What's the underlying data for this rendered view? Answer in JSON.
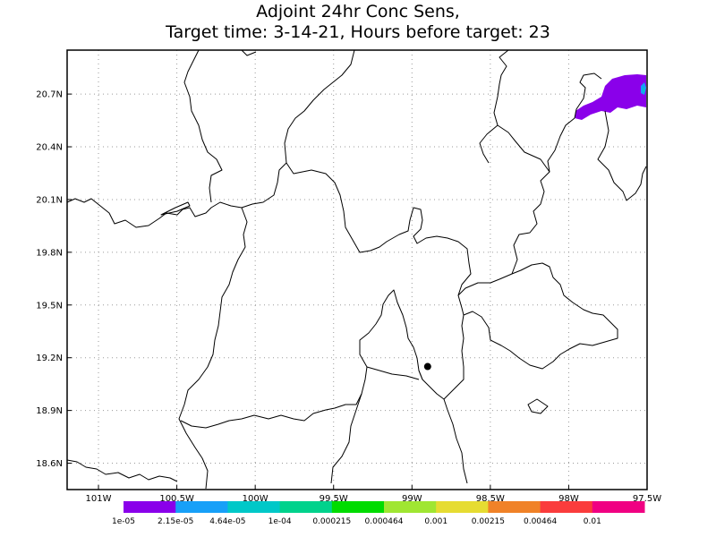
{
  "title": {
    "line1": "Adjoint 24hr Conc Sens,",
    "line2": "Target time: 3-14-21, Hours before target: 23"
  },
  "map": {
    "lon_range": [
      -101.2,
      -97.5
    ],
    "lat_range": [
      18.45,
      20.95
    ],
    "lat_ticks": [
      {
        "value": 20.7,
        "label": "20.7N"
      },
      {
        "value": 20.4,
        "label": "20.4N"
      },
      {
        "value": 20.1,
        "label": "20.1N"
      },
      {
        "value": 19.8,
        "label": "19.8N"
      },
      {
        "value": 19.5,
        "label": "19.5N"
      },
      {
        "value": 19.2,
        "label": "19.2N"
      },
      {
        "value": 18.9,
        "label": "18.9N"
      },
      {
        "value": 18.6,
        "label": "18.6N"
      }
    ],
    "lon_ticks": [
      {
        "value": -101.0,
        "label": "101W"
      },
      {
        "value": -100.5,
        "label": "100.5W"
      },
      {
        "value": -100.0,
        "label": "100W"
      },
      {
        "value": -99.5,
        "label": "99.5W"
      },
      {
        "value": -99.0,
        "label": "99W"
      },
      {
        "value": -98.5,
        "label": "98.5W"
      },
      {
        "value": -98.0,
        "label": "98W"
      },
      {
        "value": -97.5,
        "label": "97.5W"
      }
    ],
    "grid": "dotted",
    "target_marker": {
      "lon": -98.9,
      "lat": 19.15,
      "color": "#000000"
    },
    "sensitivity_colors": [
      "#8a00ea",
      "#17a0f8",
      "#00c8c8"
    ]
  },
  "colorbar": {
    "colors": [
      "#8a00ea",
      "#17a0f8",
      "#00c8c8",
      "#00d28c",
      "#00dc00",
      "#a0e632",
      "#e6dc32",
      "#f08228",
      "#fa3c3c",
      "#f00082"
    ],
    "labels": [
      "1e-05",
      "2.15e-05",
      "4.64e-05",
      "1e-04",
      "0.000215",
      "0.000464",
      "0.001",
      "0.00215",
      "0.00464",
      "0.01"
    ]
  }
}
